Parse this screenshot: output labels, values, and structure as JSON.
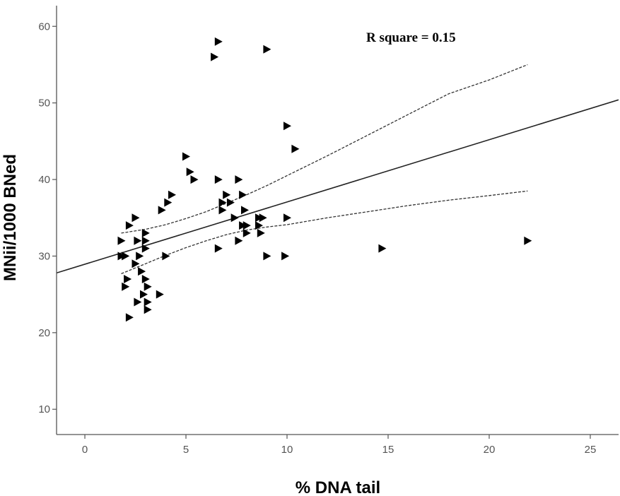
{
  "chart_data": {
    "type": "scatter",
    "title": "",
    "xlabel": "% DNA tail",
    "ylabel": "MNii/1000 BNed",
    "xlim": [
      -1.4,
      26.4
    ],
    "ylim": [
      6.7,
      62.7
    ],
    "x_ticks": [
      0,
      5,
      10,
      15,
      20,
      25
    ],
    "y_ticks": [
      10,
      20,
      30,
      40,
      50,
      60
    ],
    "x_tick_labels": [
      "0",
      "5",
      "10",
      "15",
      "20",
      "25"
    ],
    "y_tick_labels": [
      "10",
      "20",
      "30",
      "40",
      "50",
      "60"
    ],
    "grid": false,
    "legend": "none",
    "annotation": "R square = 0.15",
    "marker": "right-triangle",
    "marker_color": "#000000",
    "points": [
      [
        1.8,
        32
      ],
      [
        1.8,
        30
      ],
      [
        2.0,
        30
      ],
      [
        2.2,
        34
      ],
      [
        2.5,
        35
      ],
      [
        2.1,
        27
      ],
      [
        2.0,
        26
      ],
      [
        2.2,
        22
      ],
      [
        2.5,
        29
      ],
      [
        2.6,
        32
      ],
      [
        2.7,
        30
      ],
      [
        2.8,
        28
      ],
      [
        2.6,
        24
      ],
      [
        2.9,
        25
      ],
      [
        3.0,
        33
      ],
      [
        3.0,
        32
      ],
      [
        3.0,
        31
      ],
      [
        3.0,
        27
      ],
      [
        3.1,
        26
      ],
      [
        3.1,
        24
      ],
      [
        3.1,
        23
      ],
      [
        3.7,
        25
      ],
      [
        3.8,
        36
      ],
      [
        4.0,
        30
      ],
      [
        4.1,
        37
      ],
      [
        4.3,
        38
      ],
      [
        5.0,
        43
      ],
      [
        5.2,
        41
      ],
      [
        5.4,
        40
      ],
      [
        6.4,
        56
      ],
      [
        6.6,
        58
      ],
      [
        6.6,
        40
      ],
      [
        6.6,
        31
      ],
      [
        6.8,
        37
      ],
      [
        6.8,
        36
      ],
      [
        7.0,
        38
      ],
      [
        7.2,
        37
      ],
      [
        7.4,
        35
      ],
      [
        7.6,
        40
      ],
      [
        7.6,
        32
      ],
      [
        7.8,
        38
      ],
      [
        7.8,
        34
      ],
      [
        7.9,
        36
      ],
      [
        8.0,
        34
      ],
      [
        8.0,
        33
      ],
      [
        8.6,
        35
      ],
      [
        8.6,
        34
      ],
      [
        8.7,
        33
      ],
      [
        8.8,
        35
      ],
      [
        9.0,
        57
      ],
      [
        9.0,
        30
      ],
      [
        9.9,
        30
      ],
      [
        10.0,
        47
      ],
      [
        10.0,
        35
      ],
      [
        10.4,
        44
      ],
      [
        14.7,
        31
      ],
      [
        21.9,
        32
      ]
    ],
    "fit_line": {
      "x": [
        -1.4,
        26.4
      ],
      "y": [
        27.8,
        50.4
      ]
    },
    "ci_upper": {
      "x": [
        1.8,
        3.0,
        4.0,
        5.0,
        6.0,
        7.0,
        8.0,
        9.0,
        10.0,
        12.0,
        14.0,
        16.0,
        18.0,
        20.0,
        21.9
      ],
      "y": [
        33.0,
        33.5,
        34.1,
        34.9,
        35.8,
        36.9,
        38.0,
        39.2,
        40.5,
        43.1,
        45.8,
        48.5,
        51.2,
        53.0,
        55.0
      ]
    },
    "ci_lower": {
      "x": [
        1.8,
        3.0,
        4.0,
        5.0,
        6.0,
        7.0,
        8.0,
        9.0,
        10.0,
        12.0,
        14.0,
        16.0,
        18.0,
        20.0,
        21.9
      ],
      "y": [
        27.7,
        29.0,
        30.1,
        31.1,
        32.0,
        32.8,
        33.4,
        33.8,
        34.1,
        35.0,
        35.8,
        36.6,
        37.3,
        37.9,
        38.5
      ]
    }
  }
}
